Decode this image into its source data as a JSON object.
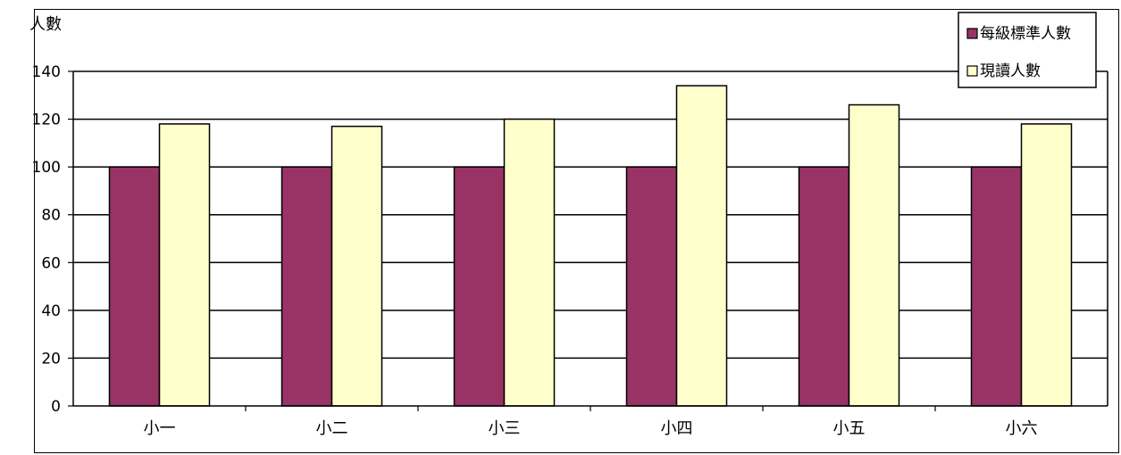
{
  "chart_data": {
    "type": "bar",
    "ylabel": "人數",
    "ylim": [
      0,
      140
    ],
    "yticks": [
      "0",
      "20",
      "40",
      "60",
      "80",
      "100",
      "120",
      "140"
    ],
    "categories": [
      "小一",
      "小二",
      "小三",
      "小四",
      "小五",
      "小六"
    ],
    "series": [
      {
        "name": "每級標準人數",
        "color": "#993366",
        "values": [
          100,
          100,
          100,
          100,
          100,
          100
        ]
      },
      {
        "name": "現讀人數",
        "color": "#FFFFCC",
        "values": [
          118,
          117,
          120,
          134,
          126,
          118
        ]
      }
    ],
    "grid": true,
    "legend_position": "top-right"
  }
}
